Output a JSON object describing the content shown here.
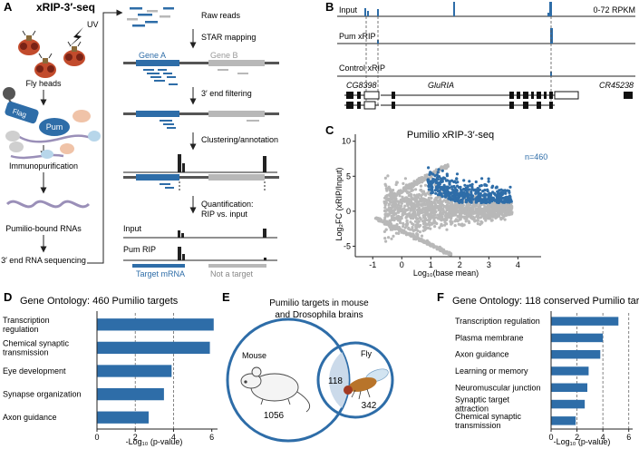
{
  "panels": {
    "A": {
      "letter": "A",
      "title": "xRIP-3′-seq",
      "uv": "UV",
      "fly_heads": "Fly heads",
      "flag": "Flag",
      "pum": "Pum",
      "immunopurification": "Immunopurification",
      "pumilio_bound": "Pumilio-bound RNAs",
      "sequencing": "3′ end RNA sequencing",
      "raw_reads": "Raw reads",
      "star_mapping": "STAR mapping",
      "gene_a": "Gene A",
      "gene_b": "Gene B",
      "end_filtering": "3′ end filtering",
      "clustering": "Clustering/annotation",
      "quantification_1": "Quantification:",
      "quantification_2": "RIP vs. input",
      "input": "Input",
      "pum_rip": "Pum RIP",
      "target_mrna": "Target mRNA",
      "not_target": "Not a target"
    },
    "B": {
      "letter": "B",
      "input": "Input",
      "pum_xrip": "Pum xRIP",
      "control_xrip": "Control xRIP",
      "scale": "0-72 RPKM",
      "gene1": "CG8398",
      "gene2": "GluRIA",
      "gene3": "CR45238"
    },
    "C": {
      "letter": "C",
      "title": "Pumilio xRIP-3′-seq",
      "n_label": "n=460",
      "ylabel": "Log₂FC (xRIP/Input)",
      "xlabel": "Log₁₀(base mean)"
    },
    "D": {
      "letter": "D",
      "title": "Gene Ontology: 460 Pumilio targets",
      "xlabel": "-Log₁₀ (p-value)"
    },
    "E": {
      "letter": "E",
      "title_1": "Pumilio targets in mouse",
      "title_2": "and Drosophila brains",
      "mouse": "Mouse",
      "fly": "Fly",
      "mouse_only": "1056",
      "overlap": "118",
      "fly_only": "342"
    },
    "F": {
      "letter": "F",
      "title": "Gene Ontology: 118 conserved Pumilio targets",
      "xlabel": "-Log₁₀ (p-value)"
    }
  },
  "colors": {
    "blue": "#2e6da8",
    "grey": "#b8b8b8",
    "dark": "#222222"
  },
  "chart_data": [
    {
      "id": "C",
      "type": "scatter",
      "title": "Pumilio xRIP-3′-seq",
      "xlabel": "Log10(base mean)",
      "ylabel": "Log2FC (xRIP/Input)",
      "xlim": [
        -1.6,
        4.8
      ],
      "ylim": [
        -6.5,
        11
      ],
      "xticks": [
        -1,
        0,
        1,
        2,
        3,
        4
      ],
      "yticks": [
        -5,
        0,
        5,
        10
      ],
      "highlight_count": 460
    },
    {
      "id": "D",
      "type": "bar",
      "orientation": "horizontal",
      "title": "Gene Ontology: 460 Pumilio targets",
      "categories": [
        "Transcription regulation",
        "Chemical synaptic transmission",
        "Eye development",
        "Synapse organization",
        "Axon guidance"
      ],
      "values": [
        6.1,
        5.9,
        3.9,
        3.5,
        2.7
      ],
      "xlim": [
        0,
        6.3
      ],
      "xticks": [
        0,
        2,
        4,
        6
      ],
      "reference_lines": [
        2,
        4
      ],
      "xlabel": "-Log10 (p-value)"
    },
    {
      "id": "F",
      "type": "bar",
      "orientation": "horizontal",
      "title": "Gene Ontology: 118 conserved Pumilio targets",
      "categories": [
        "Transcription regulation",
        "Plasma membrane",
        "Axon guidance",
        "Learning or memory",
        "Neuromuscular junction",
        "Synaptic target attraction",
        "Chemical synaptic transmission"
      ],
      "values": [
        5.2,
        4.0,
        3.8,
        2.9,
        2.8,
        2.6,
        1.9
      ],
      "xlim": [
        0,
        6.3
      ],
      "xticks": [
        0,
        2,
        4,
        6
      ],
      "reference_lines": [
        2,
        4,
        6
      ],
      "xlabel": "-Log10 (p-value)"
    }
  ]
}
